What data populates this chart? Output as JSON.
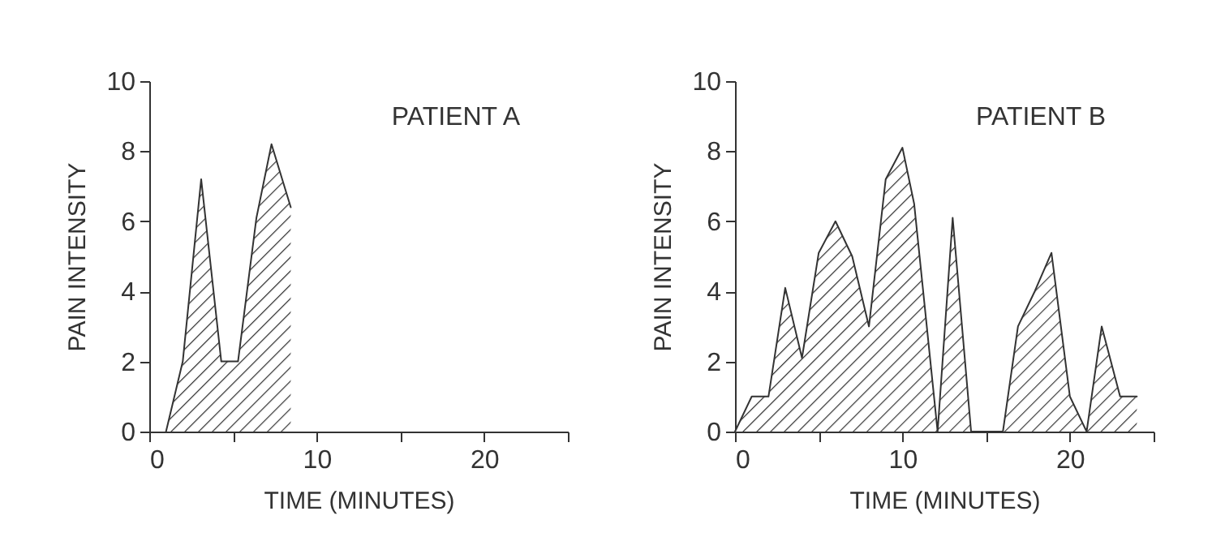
{
  "chart_data": [
    {
      "type": "area",
      "title": "PATIENT A",
      "xlabel": "TIME (MINUTES)",
      "ylabel": "PAIN INTENSITY",
      "x": [
        1,
        2,
        3.1,
        4.3,
        5.3,
        6.4,
        7.3,
        8.45,
        8.45
      ],
      "values": [
        0,
        2,
        7.2,
        2,
        2,
        6.1,
        8.2,
        6.4,
        0
      ],
      "color": "#333333",
      "xlim": [
        0,
        25
      ],
      "xticks": [
        0,
        {
          "value": 5,
          "label": null
        },
        10,
        {
          "value": 15,
          "label": null
        },
        20,
        {
          "value": 25,
          "label": null
        }
      ],
      "ylim": [
        0,
        10
      ],
      "yticks": [
        0,
        2,
        4,
        6,
        8,
        10
      ],
      "grid": false
    },
    {
      "type": "area",
      "title": "PATIENT B",
      "xlabel": "TIME (MINUTES)",
      "ylabel": "PAIN INTENSITY",
      "x": [
        0,
        1,
        2,
        3,
        4,
        5,
        6,
        7,
        8,
        9,
        10,
        10.7,
        12.1,
        13,
        14.1,
        16,
        16.9,
        17.9,
        18.9,
        20,
        21,
        21.9,
        23,
        24,
        24
      ],
      "values": [
        0,
        1,
        1,
        4.1,
        2.1,
        5.1,
        6,
        5,
        3,
        7.2,
        8.1,
        6.5,
        0,
        6.1,
        0,
        0,
        3,
        4,
        5.1,
        1,
        0,
        3,
        1,
        1,
        0
      ],
      "color": "#333333",
      "xlim": [
        0,
        25
      ],
      "xticks": [
        0,
        {
          "value": 5,
          "label": null
        },
        10,
        {
          "value": 15,
          "label": null
        },
        20,
        {
          "value": 25,
          "label": null
        }
      ],
      "ylim": [
        0,
        10
      ],
      "yticks": [
        0,
        2,
        4,
        6,
        8,
        10
      ],
      "grid": false
    }
  ]
}
